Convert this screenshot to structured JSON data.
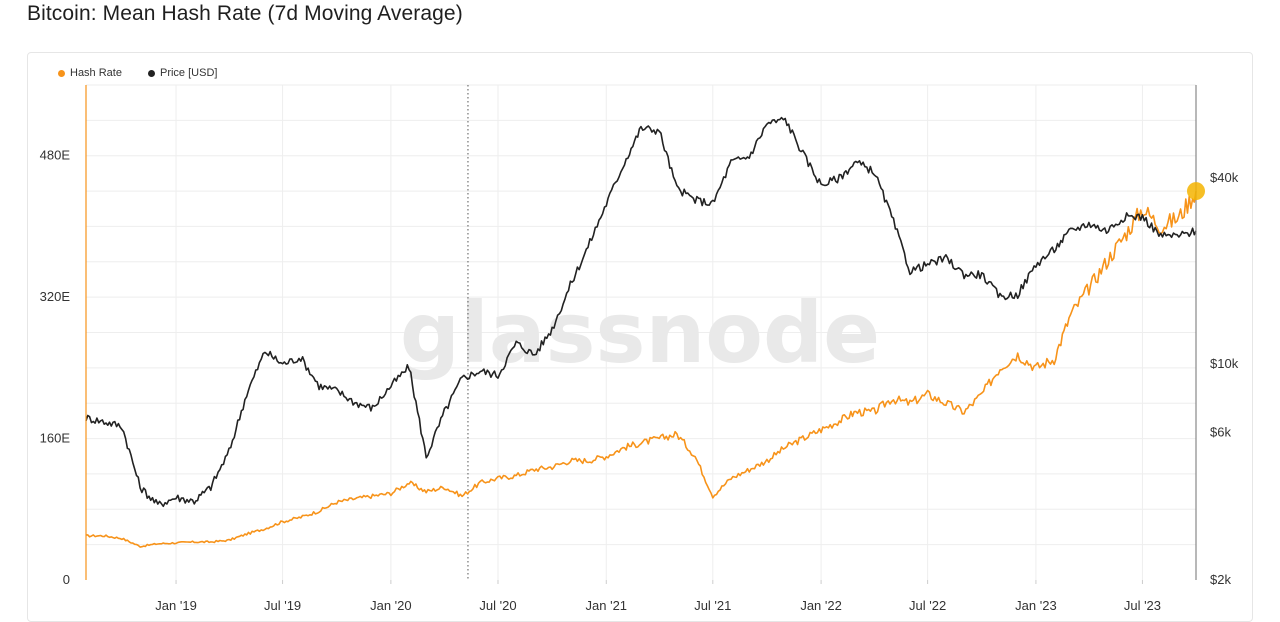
{
  "page": {
    "title": "Bitcoin: Mean Hash Rate (7d Moving Average)"
  },
  "legend": {
    "items": [
      {
        "label": "Hash Rate",
        "color": "#f7931a"
      },
      {
        "label": "Price [USD]",
        "color": "#222222"
      }
    ]
  },
  "watermark": "glassnode",
  "colors": {
    "hash_rate": "#f7931a",
    "price": "#222222",
    "grid": "#eeeeee",
    "marker": "#f5b400"
  },
  "chart_data": {
    "type": "line",
    "title": "Bitcoin: Mean Hash Rate (7d Moving Average)",
    "x_ticks": [
      "Jan '19",
      "Jul '19",
      "Jan '20",
      "Jul '20",
      "Jan '21",
      "Jul '21",
      "Jan '22",
      "Jul '22",
      "Jan '23",
      "Jul '23"
    ],
    "x_range": [
      "2018-08-01",
      "2023-09-30"
    ],
    "left_axis": {
      "ticks": [
        "0",
        "160E",
        "320E",
        "480E"
      ],
      "tick_values": [
        0,
        160,
        320,
        480
      ],
      "range": [
        0,
        560
      ],
      "unit": "EH/s"
    },
    "right_axis": {
      "scale": "log",
      "ticks": [
        "$2k",
        "$6k",
        "$10k",
        "$40k"
      ],
      "tick_values": [
        2000,
        6000,
        10000,
        40000
      ],
      "range": [
        2000,
        80000
      ]
    },
    "grid": true,
    "legend_position": "top-left",
    "series": [
      {
        "name": "Hash Rate",
        "axis": "left",
        "x": [
          "2018-08-01",
          "2018-09-01",
          "2018-10-01",
          "2018-11-01",
          "2018-12-01",
          "2019-01-01",
          "2019-02-01",
          "2019-03-01",
          "2019-04-01",
          "2019-05-01",
          "2019-06-01",
          "2019-07-01",
          "2019-08-01",
          "2019-09-01",
          "2019-10-01",
          "2019-11-01",
          "2019-12-01",
          "2020-01-01",
          "2020-02-01",
          "2020-03-01",
          "2020-04-01",
          "2020-05-01",
          "2020-06-01",
          "2020-07-01",
          "2020-08-01",
          "2020-09-01",
          "2020-10-01",
          "2020-11-01",
          "2020-12-01",
          "2021-01-01",
          "2021-02-01",
          "2021-03-01",
          "2021-04-01",
          "2021-05-01",
          "2021-06-01",
          "2021-07-01",
          "2021-08-01",
          "2021-09-01",
          "2021-10-01",
          "2021-11-01",
          "2021-12-01",
          "2022-01-01",
          "2022-02-01",
          "2022-03-01",
          "2022-04-01",
          "2022-05-01",
          "2022-06-01",
          "2022-07-01",
          "2022-08-01",
          "2022-09-01",
          "2022-10-01",
          "2022-11-01",
          "2022-12-01",
          "2023-01-01",
          "2023-02-01",
          "2023-03-01",
          "2023-04-01",
          "2023-05-01",
          "2023-06-01",
          "2023-07-01",
          "2023-08-01",
          "2023-09-01",
          "2023-09-30"
        ],
        "values": [
          50,
          50,
          47,
          38,
          41,
          42,
          43,
          43,
          45,
          52,
          58,
          66,
          71,
          78,
          88,
          92,
          95,
          98,
          110,
          100,
          105,
          95,
          110,
          115,
          118,
          125,
          128,
          135,
          135,
          140,
          150,
          155,
          160,
          165,
          140,
          95,
          115,
          125,
          135,
          150,
          160,
          170,
          180,
          190,
          190,
          205,
          200,
          210,
          200,
          190,
          210,
          240,
          255,
          240,
          250,
          300,
          330,
          360,
          390,
          420,
          400,
          410,
          440
        ]
      },
      {
        "name": "Price [USD]",
        "axis": "right",
        "x": [
          "2018-08-01",
          "2018-09-01",
          "2018-10-01",
          "2018-11-01",
          "2018-12-01",
          "2019-01-01",
          "2019-02-01",
          "2019-03-01",
          "2019-04-01",
          "2019-05-01",
          "2019-06-01",
          "2019-07-01",
          "2019-08-01",
          "2019-09-01",
          "2019-10-01",
          "2019-11-01",
          "2019-12-01",
          "2020-01-01",
          "2020-02-01",
          "2020-03-01",
          "2020-04-01",
          "2020-05-01",
          "2020-06-01",
          "2020-07-01",
          "2020-08-01",
          "2020-09-01",
          "2020-10-01",
          "2020-11-01",
          "2020-12-01",
          "2021-01-01",
          "2021-02-01",
          "2021-03-01",
          "2021-04-01",
          "2021-05-01",
          "2021-06-01",
          "2021-07-01",
          "2021-08-01",
          "2021-09-01",
          "2021-10-01",
          "2021-11-01",
          "2021-12-01",
          "2022-01-01",
          "2022-02-01",
          "2022-03-01",
          "2022-04-01",
          "2022-05-01",
          "2022-06-01",
          "2022-07-01",
          "2022-08-01",
          "2022-09-01",
          "2022-10-01",
          "2022-11-01",
          "2022-12-01",
          "2023-01-01",
          "2023-02-01",
          "2023-03-01",
          "2023-04-01",
          "2023-05-01",
          "2023-06-01",
          "2023-07-01",
          "2023-08-01",
          "2023-09-01",
          "2023-09-30"
        ],
        "values": [
          6700,
          6500,
          6300,
          4000,
          3500,
          3700,
          3600,
          4000,
          5200,
          8000,
          11000,
          10000,
          10500,
          8500,
          8200,
          7500,
          7200,
          8500,
          9800,
          5000,
          7000,
          9000,
          9500,
          9200,
          11700,
          10700,
          13000,
          18000,
          24000,
          33000,
          45000,
          58000,
          57000,
          37000,
          34000,
          33000,
          45000,
          47000,
          60000,
          62000,
          48000,
          38000,
          40000,
          45000,
          42000,
          30000,
          20000,
          21000,
          22000,
          19500,
          19500,
          16500,
          16800,
          21000,
          23500,
          27000,
          28500,
          27000,
          30000,
          30000,
          26000,
          26000,
          27000
        ]
      }
    ],
    "annotations": [
      {
        "type": "vertical-dotted-line",
        "x": "2020-05-11"
      },
      {
        "type": "end-marker",
        "series": "Hash Rate",
        "x": "2023-09-30",
        "value": 440
      }
    ]
  }
}
